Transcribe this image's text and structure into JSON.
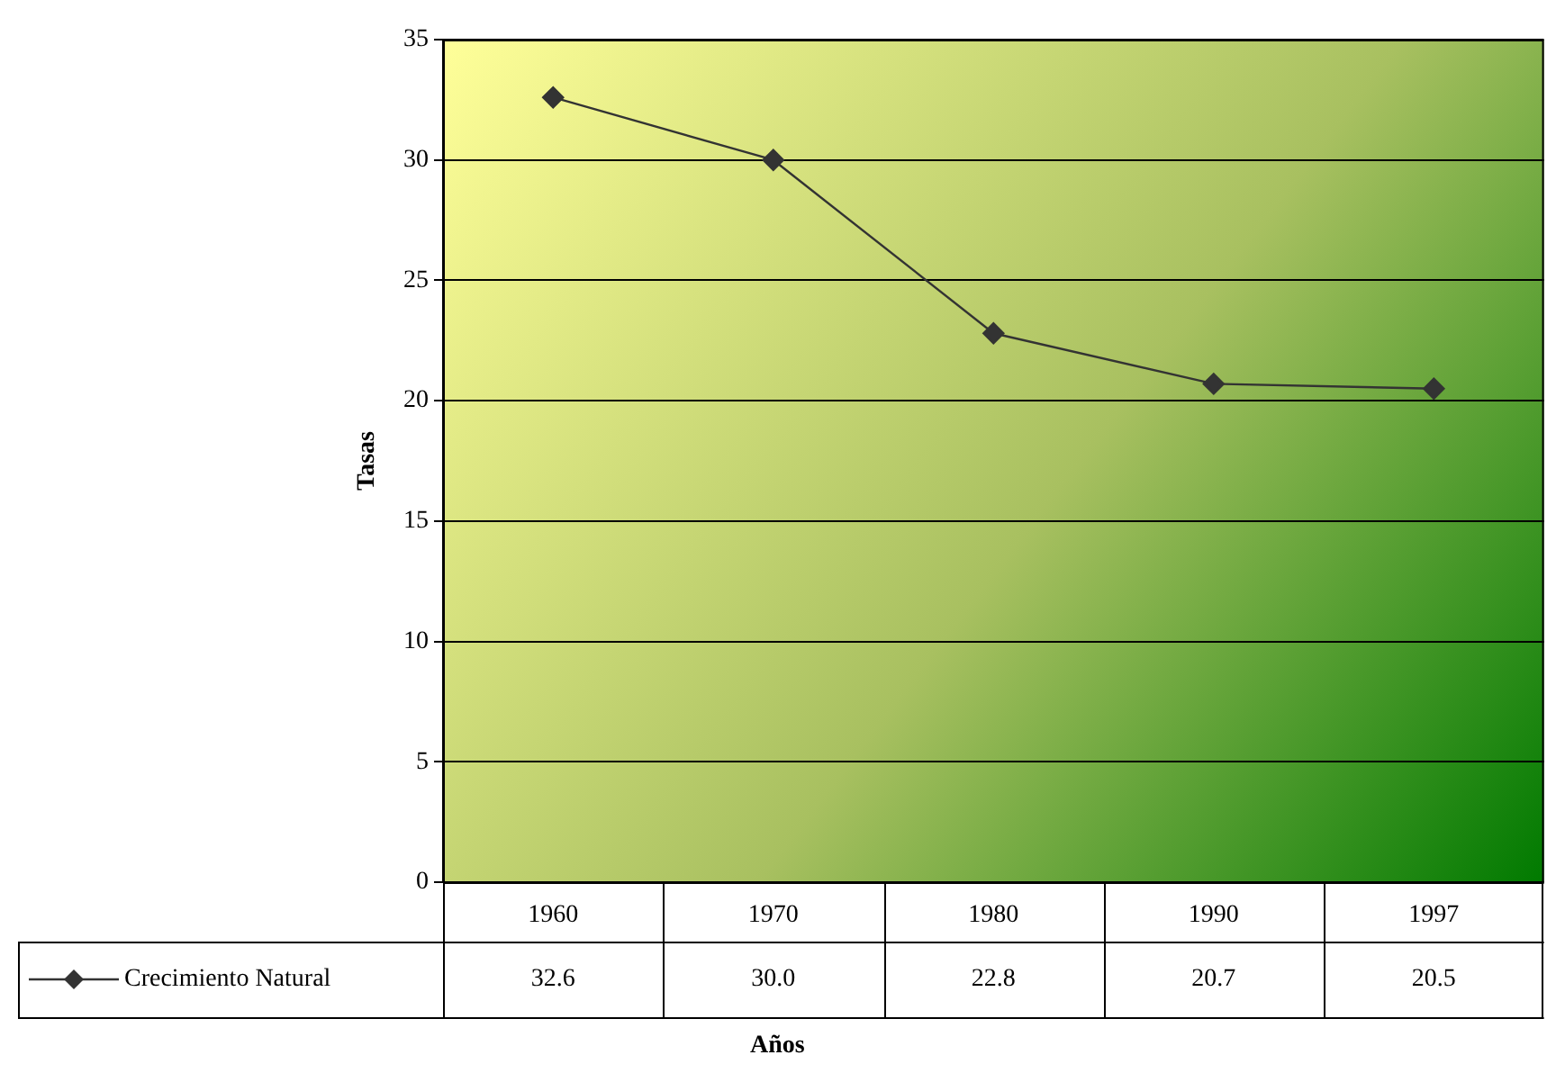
{
  "chart_data": {
    "type": "line",
    "xlabel": "Años",
    "ylabel": "Tasas",
    "categories": [
      "1960",
      "1970",
      "1980",
      "1990",
      "1997"
    ],
    "series": [
      {
        "name": "Crecimiento Natural",
        "color": "#333333",
        "values": [
          32.6,
          30.0,
          22.8,
          20.7,
          20.5
        ],
        "value_labels": [
          "32.6",
          "30.0",
          "22.8",
          "20.7",
          "20.5"
        ]
      }
    ],
    "ylim": [
      0,
      35
    ],
    "yticks": [
      0,
      5,
      10,
      15,
      20,
      25,
      30,
      35
    ],
    "grid": "y",
    "legend": "bottom",
    "marker": "diamond",
    "line_style": "solid"
  }
}
